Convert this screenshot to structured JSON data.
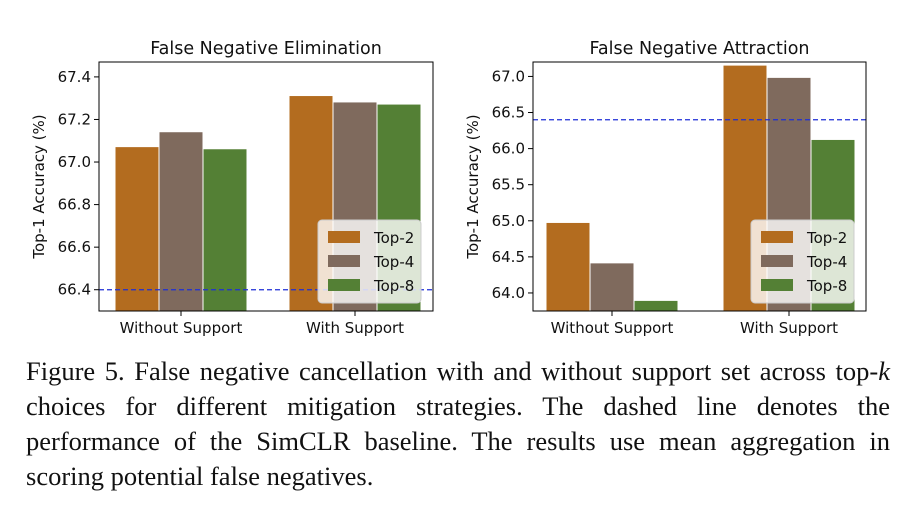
{
  "chart_data": [
    {
      "type": "bar",
      "title": "False Negative Elimination",
      "ylabel": "Top-1 Accuracy (%)",
      "categories": [
        "Without Support",
        "With Support"
      ],
      "series": [
        {
          "name": "Top-2",
          "values": [
            67.07,
            67.31
          ]
        },
        {
          "name": "Top-4",
          "values": [
            67.14,
            67.28
          ]
        },
        {
          "name": "Top-8",
          "values": [
            67.06,
            67.27
          ]
        }
      ],
      "ylim": [
        66.3,
        67.47
      ],
      "yticks": [
        66.4,
        66.6,
        66.8,
        67.0,
        67.2,
        67.4
      ],
      "ytick_labels": [
        "66.4",
        "66.6",
        "66.8",
        "67.0",
        "67.2",
        "67.4"
      ],
      "baseline": 66.4,
      "legend_position": "lower-right"
    },
    {
      "type": "bar",
      "title": "False Negative Attraction",
      "ylabel": "Top-1 Accuracy (%)",
      "categories": [
        "Without Support",
        "With Support"
      ],
      "series": [
        {
          "name": "Top-2",
          "values": [
            64.97,
            67.15
          ]
        },
        {
          "name": "Top-4",
          "values": [
            64.41,
            66.98
          ]
        },
        {
          "name": "Top-8",
          "values": [
            63.89,
            66.12
          ]
        }
      ],
      "ylim": [
        63.75,
        67.2
      ],
      "yticks": [
        64.0,
        64.5,
        65.0,
        65.5,
        66.0,
        66.5,
        67.0
      ],
      "ytick_labels": [
        "64.0",
        "64.5",
        "65.0",
        "65.5",
        "66.0",
        "66.5",
        "67.0"
      ],
      "baseline": 66.4,
      "legend_position": "lower-right"
    }
  ],
  "colors": {
    "Top-2": "#b36c1f",
    "Top-4": "#7f6a5d",
    "Top-8": "#548035",
    "baseline": "#1f2fd6"
  },
  "caption": {
    "prefix": "Figure 5. False negative cancellation with and without support set across top-",
    "italic": "k",
    "suffix": " choices for different mitigation strategies. The dashed line denotes the performance of the SimCLR baseline. The results use mean aggregation in scoring potential false negatives."
  }
}
